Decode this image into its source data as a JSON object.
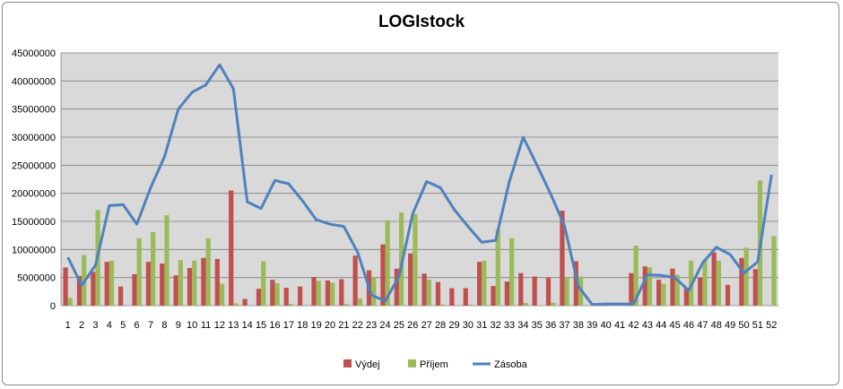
{
  "chart_data": {
    "type": "bar+line",
    "title": "LOGIstock",
    "xlabel": "",
    "ylabel": "",
    "ylim": [
      0,
      45000000
    ],
    "y_ticks": [
      "0",
      "5000000",
      "10000000",
      "15000000",
      "20000000",
      "25000000",
      "30000000",
      "35000000",
      "40000000",
      "45000000"
    ],
    "categories": [
      "1",
      "2",
      "3",
      "4",
      "5",
      "6",
      "7",
      "8",
      "9",
      "10",
      "11",
      "12",
      "13",
      "14",
      "15",
      "16",
      "17",
      "18",
      "19",
      "20",
      "21",
      "22",
      "23",
      "24",
      "25",
      "26",
      "27",
      "28",
      "29",
      "30",
      "31",
      "32",
      "33",
      "34",
      "35",
      "36",
      "37",
      "38",
      "39",
      "40",
      "41",
      "42",
      "43",
      "44",
      "45",
      "46",
      "47",
      "48",
      "49",
      "50",
      "51",
      "52"
    ],
    "grid": true,
    "legend_position": "bottom",
    "series": [
      {
        "name": "Výdej",
        "type": "bar",
        "color": "#c0504d",
        "values": [
          6800000,
          5300000,
          6000000,
          7800000,
          3400000,
          5600000,
          7800000,
          7500000,
          5400000,
          6700000,
          8500000,
          8300000,
          20500000,
          1200000,
          3000000,
          4600000,
          3200000,
          3400000,
          5100000,
          4500000,
          4700000,
          8900000,
          6300000,
          10900000,
          6600000,
          9300000,
          5700000,
          4200000,
          3100000,
          3100000,
          7800000,
          3500000,
          4300000,
          5800000,
          5200000,
          5000000,
          16900000,
          7900000,
          0,
          0,
          0,
          5800000,
          7000000,
          4600000,
          6600000,
          3200000,
          5000000,
          9500000,
          3700000,
          8500000,
          6500000,
          0
        ]
      },
      {
        "name": "Příjem",
        "type": "bar",
        "color": "#9bbb59",
        "values": [
          1400000,
          9000000,
          17000000,
          8000000,
          0,
          12000000,
          13100000,
          16100000,
          8100000,
          8000000,
          12000000,
          3900000,
          400000,
          0,
          7900000,
          4000000,
          300000,
          0,
          4400000,
          4100000,
          300000,
          1300000,
          5000000,
          15200000,
          16600000,
          16300000,
          4600000,
          200000,
          0,
          200000,
          8000000,
          13500000,
          12000000,
          500000,
          0,
          500000,
          5100000,
          5200000,
          0,
          0,
          0,
          10700000,
          6800000,
          3900000,
          5500000,
          8000000,
          8200000,
          8000000,
          0,
          10300000,
          22300000,
          12400000
        ]
      },
      {
        "name": "Zásoba",
        "type": "line",
        "color": "#4f81bd",
        "values": [
          8600000,
          3600000,
          7200000,
          17800000,
          18000000,
          14500000,
          21000000,
          26500000,
          35000000,
          38000000,
          39300000,
          42900000,
          38600000,
          18500000,
          17300000,
          22300000,
          21700000,
          18700000,
          15300000,
          14500000,
          14100000,
          9500000,
          1900000,
          800000,
          5200000,
          16400000,
          22100000,
          21000000,
          17100000,
          14100000,
          11300000,
          11600000,
          22100000,
          30000000,
          25000000,
          19800000,
          14200000,
          3400000,
          200000,
          300000,
          300000,
          300000,
          5500000,
          5400000,
          5000000,
          2700000,
          7600000,
          10400000,
          9100000,
          5800000,
          7800000,
          23300000
        ]
      }
    ]
  }
}
